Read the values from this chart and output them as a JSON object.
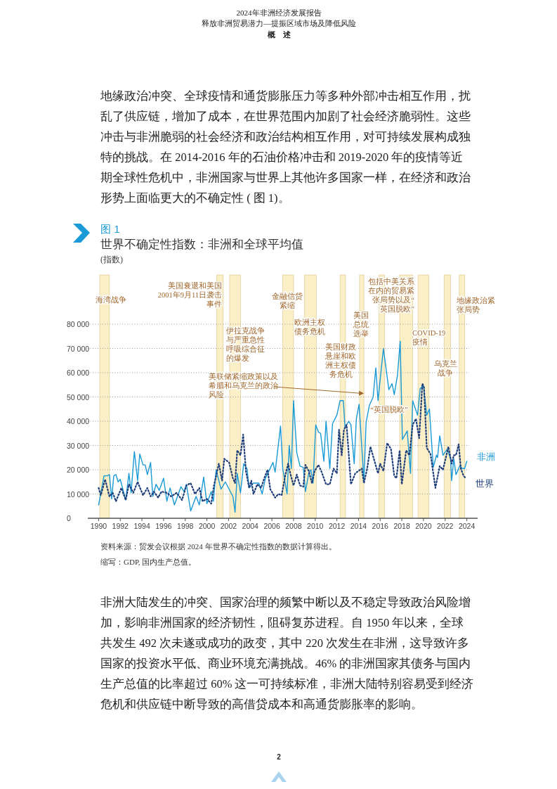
{
  "chart_data": {
    "type": "line",
    "title": "世界不确定性指数：非洲和全球平均值",
    "subtitle": "(指数)",
    "annotations": [
      "2024年非洲经济发展报告",
      "释放非洲贸易潜力—提振区域市场及降低风险",
      "概　述",
      "地缘政治冲突、全球疫情和通货膨胀压力等多种外部冲击相互作用，扰乱了供应链，增加了成本，在世界范围内加剧了社会经济脆弱性。这些冲击与非洲脆弱的社会经济和政治结构相互作用，对可持续发展构成独特的挑战。在 2014-2016 年的石油价格冲击和 2019-2020 年的疫情等近期全球性危机中，非洲国家与世界上其他许多国家一样，在经济和政治形势上面临更大的不确定性 ( 图 1)。",
      "图 1",
      "资料来源：贸发会议根据 2024 年世界不确定性指数的数据计算得出。",
      "缩写：GDP, 国内生产总值。",
      "非洲大陆发生的冲突、国家治理的频繁中断以及不稳定导致政治风险增加，影响非洲国家的经济韧性，阻碍复苏进程。自 1950 年以来，全球共发生 492 次未遂或成功的政变，其中 220 次发生在非洲，这导致许多国家的投资水平低、商业环境充满挑战。46% 的非洲国家其债务与国内生产总值的比率超过 60% 这一可持续标准，非洲大陆特别容易受到经济危机和供应链中断导致的高借贷成本和高通货膨胀率的影响。",
      "2",
      {
        "text": "美联储紧缩政策以及希腊和乌克兰的政治风险",
        "x": 2014.5,
        "y": 51500
      }
    ],
    "xlim": [
      1989,
      2025
    ],
    "xticks": [
      1990,
      1992,
      1994,
      1996,
      1998,
      2000,
      2002,
      2004,
      2006,
      2008,
      2010,
      2012,
      2014,
      2016,
      2018,
      2020,
      2022,
      2024
    ],
    "ylim": [
      0,
      80000
    ],
    "yticks": [
      0,
      {
        "value": 10000,
        "label": "10 000"
      },
      {
        "value": 20000,
        "label": "20 000"
      },
      {
        "value": 30000,
        "label": "30 000"
      },
      {
        "value": 40000,
        "label": "40 000"
      },
      {
        "value": 50000,
        "label": "50 000"
      },
      {
        "value": 60000,
        "label": "60 000"
      },
      {
        "value": 70000,
        "label": "70 000"
      },
      {
        "value": 80000,
        "label": "80 000"
      }
    ],
    "grid": "y",
    "bands": [
      {
        "axis": "x",
        "from": 1990.1,
        "to": 1991.0,
        "label": "海湾战争",
        "color": "#fbefc8"
      },
      {
        "axis": "x",
        "from": 2000.9,
        "to": 2001.5,
        "label": "美国衰退和美国2001年9月11日袭击事件",
        "color": "#fbefc8"
      },
      {
        "axis": "x",
        "from": 2002.1,
        "to": 2003.1,
        "label": "伊拉克战争与严重急性呼吸综合征的爆发",
        "color": "#fbefc8"
      },
      {
        "axis": "x",
        "from": 2007.0,
        "to": 2008.0,
        "label": "金融信贷紧缩",
        "color": "#fbefc8"
      },
      {
        "axis": "x",
        "from": 2009.0,
        "to": 2010.1,
        "label": "欧洲主权债务危机",
        "color": "#fbefc8"
      },
      {
        "axis": "x",
        "from": 2012.3,
        "to": 2012.8,
        "label": "美国财政悬崖和欧洲主权债务危机",
        "color": "#fbefc8"
      },
      {
        "axis": "x",
        "from": 2014.1,
        "to": 2014.5,
        "label": "美国总统选举",
        "color": "#fbefc8"
      },
      {
        "axis": "x",
        "from": 2015.9,
        "to": 2016.4,
        "label": "“英国脱欧”",
        "color": "#fbefc8"
      },
      {
        "axis": "x",
        "from": 2017.8,
        "to": 2019.0,
        "label": "包括中美关系在内的贸易紧张局势以及“英国脱欧”",
        "color": "#fbefc8"
      },
      {
        "axis": "x",
        "from": 2019.5,
        "to": 2020.5,
        "label": "COVID-19疫情",
        "color": "#fbefc8"
      },
      {
        "axis": "x",
        "from": 2021.9,
        "to": 2022.5,
        "label": "乌克兰战争",
        "color": "#fbefc8"
      },
      {
        "axis": "x",
        "from": 2023.3,
        "to": 2023.8,
        "label": "地缘政治紧张局势",
        "color": "#fbefc8"
      }
    ],
    "series": [
      {
        "name": "非洲",
        "color": "#1a9ad6",
        "line_style": "solid",
        "x": [
          1990.0,
          1990.5,
          1990.8,
          1991.0,
          1991.2,
          1991.4,
          1991.6,
          1991.8,
          1992.0,
          1992.5,
          1992.8,
          1993.0,
          1993.3,
          1993.6,
          1993.8,
          1994.1,
          1994.3,
          1994.5,
          1994.8,
          1995.0,
          1995.3,
          1995.6,
          1996.0,
          1996.3,
          1996.6,
          1997.0,
          1997.6,
          1997.9,
          1998.1,
          1998.5,
          1999.0,
          1999.3,
          1999.7,
          2000.0,
          2000.4,
          2000.6,
          2000.85,
          2001.3,
          2001.7,
          2002.4,
          2002.6,
          2002.8,
          2003.1,
          2003.4,
          2003.7,
          2003.9,
          2004.3,
          2004.8,
          2005.1,
          2005.4,
          2006.1,
          2006.3,
          2006.8,
          2007.0,
          2007.4,
          2007.6,
          2007.8,
          2008.0,
          2008.3,
          2008.6,
          2008.9,
          2009.1,
          2009.4,
          2009.6,
          2009.8,
          2010.05,
          2010.3,
          2010.5,
          2010.8,
          2011.0,
          2011.35,
          2011.6,
          2012.0,
          2012.3,
          2012.6,
          2012.75,
          2013.1,
          2013.3,
          2013.6,
          2013.8,
          2014.05,
          2014.5,
          2014.7,
          2015.0,
          2015.35,
          2015.6,
          2015.8,
          2016.3,
          2016.8,
          2017.1,
          2017.3,
          2017.6,
          2017.85,
          2018.05,
          2018.5,
          2018.8,
          2019.0,
          2019.45,
          2019.7,
          2020.0,
          2020.3,
          2020.55,
          2020.9,
          2021.2,
          2021.3,
          2021.5,
          2021.8,
          2022.2,
          2022.5,
          2022.6,
          2022.8,
          2023.0,
          2023.35,
          2023.6,
          2023.8,
          2024.0
        ],
        "values": [
          5500,
          17500,
          17500,
          18000,
          8000,
          17500,
          18000,
          15000,
          16000,
          7500,
          18500,
          10500,
          27500,
          15500,
          26500,
          22000,
          22000,
          18000,
          23000,
          9000,
          14000,
          11500,
          16500,
          7000,
          12500,
          5500,
          13000,
          11000,
          14000,
          3000,
          9000,
          5500,
          17000,
          6000,
          11000,
          7000,
          20000,
          12000,
          15000,
          9000,
          2500,
          18500,
          10500,
          22500,
          20500,
          12500,
          14500,
          14500,
          10000,
          16500,
          23000,
          19000,
          38000,
          20500,
          10000,
          30000,
          20500,
          48500,
          27000,
          21500,
          21000,
          11000,
          18500,
          20000,
          14500,
          38500,
          35500,
          35000,
          23500,
          40000,
          20500,
          39000,
          42500,
          48500,
          48500,
          37500,
          40000,
          38500,
          22500,
          41000,
          47000,
          15500,
          39500,
          46500,
          50000,
          62000,
          48500,
          70000,
          53000,
          55500,
          51000,
          59000,
          73000,
          32500,
          36000,
          18500,
          48500,
          42500,
          53500,
          54500,
          42500,
          45000,
          21000,
          26000,
          25000,
          34000,
          26000,
          28500,
          24500,
          15500,
          24500,
          18000,
          21500,
          20500,
          20500,
          23500
        ]
      },
      {
        "name": "世界",
        "color": "#1f3f7a",
        "line_style": "dotted",
        "x": [
          1990.0,
          1990.2,
          1990.6,
          1991.0,
          1991.3,
          1991.6,
          1992.1,
          1992.5,
          1992.8,
          1993.2,
          1993.6,
          1994.1,
          1994.5,
          1994.8,
          1995.1,
          1995.5,
          1995.8,
          1996.3,
          1996.7,
          1997.2,
          1997.7,
          1998.1,
          1998.5,
          1998.9,
          1999.3,
          1999.6,
          2000.0,
          2000.4,
          2000.65,
          2001.1,
          2001.4,
          2001.6,
          2002.05,
          2002.4,
          2002.6,
          2002.8,
          2003.1,
          2003.35,
          2003.6,
          2003.9,
          2004.1,
          2004.3,
          2004.65,
          2005.0,
          2005.3,
          2005.6,
          2005.85,
          2006.3,
          2006.6,
          2006.9,
          2007.25,
          2007.5,
          2007.7,
          2008.0,
          2008.3,
          2008.6,
          2008.9,
          2009.1,
          2009.4,
          2009.7,
          2009.95,
          2010.3,
          2010.6,
          2011.0,
          2011.35,
          2011.7,
          2012.0,
          2012.2,
          2012.45,
          2012.65,
          2012.9,
          2013.3,
          2013.7,
          2014.3,
          2014.5,
          2014.8,
          2015.1,
          2015.8,
          2016.0,
          2016.3,
          2016.65,
          2017.0,
          2017.3,
          2017.5,
          2017.8,
          2018.0,
          2018.4,
          2018.7,
          2019.0,
          2019.3,
          2019.6,
          2019.9,
          2020.05,
          2020.3,
          2020.65,
          2021.1,
          2021.5,
          2021.8,
          2022.3,
          2022.6,
          2022.8,
          2023.0,
          2023.25,
          2023.45,
          2023.7,
          2023.9
        ],
        "values": [
          12500,
          9500,
          16000,
          9000,
          10500,
          7000,
          12500,
          7500,
          14000,
          10500,
          15000,
          9500,
          12500,
          9000,
          11000,
          8500,
          11000,
          10500,
          9000,
          10500,
          7500,
          13500,
          14500,
          10000,
          12500,
          7000,
          8000,
          6000,
          13500,
          22500,
          15500,
          24500,
          23000,
          16500,
          14500,
          28000,
          26000,
          34500,
          19500,
          12500,
          15500,
          10000,
          14000,
          12500,
          16500,
          20000,
          12000,
          8500,
          10000,
          9500,
          18000,
          22500,
          18500,
          13500,
          18000,
          13500,
          13000,
          22000,
          19500,
          14500,
          19500,
          22000,
          19000,
          14000,
          14000,
          20500,
          18500,
          36500,
          26000,
          36500,
          38500,
          14000,
          18500,
          20500,
          14500,
          20500,
          29500,
          18500,
          22500,
          19500,
          31000,
          28500,
          17500,
          16500,
          28000,
          14000,
          28000,
          26000,
          38500,
          41000,
          33000,
          55500,
          54000,
          29000,
          26500,
          12500,
          21500,
          20000,
          29500,
          22500,
          26000,
          26000,
          30500,
          20500,
          17500,
          16500
        ]
      }
    ]
  }
}
